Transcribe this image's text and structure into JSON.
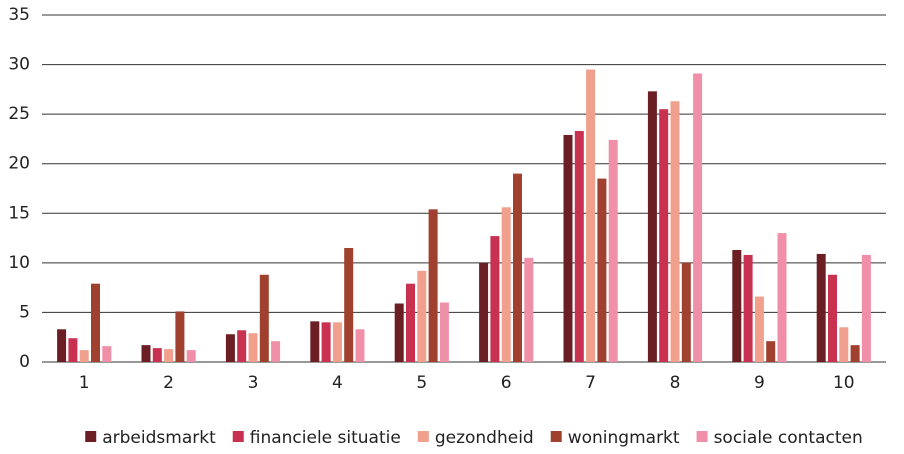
{
  "chart_data": {
    "type": "bar",
    "categories": [
      "1",
      "2",
      "3",
      "4",
      "5",
      "6",
      "7",
      "8",
      "9",
      "10"
    ],
    "series": [
      {
        "name": "arbeidsmarkt",
        "color": "#6b1e24",
        "values": [
          3.3,
          1.7,
          2.8,
          4.1,
          5.9,
          10.0,
          22.9,
          27.3,
          11.3,
          10.9
        ]
      },
      {
        "name": "financiele situatie",
        "color": "#c8314f",
        "values": [
          2.4,
          1.4,
          3.2,
          4.0,
          7.9,
          12.7,
          23.3,
          25.5,
          10.8,
          8.8
        ]
      },
      {
        "name": "gezondheid",
        "color": "#f0a08c",
        "values": [
          1.2,
          1.3,
          2.9,
          4.0,
          9.2,
          15.6,
          29.5,
          26.3,
          6.6,
          3.5
        ]
      },
      {
        "name": "woningmarkt",
        "color": "#a0402e",
        "values": [
          7.9,
          5.1,
          8.8,
          11.5,
          15.4,
          19.0,
          18.5,
          10.0,
          2.1,
          1.7
        ]
      },
      {
        "name": "sociale contacten",
        "color": "#f08fa8",
        "values": [
          1.6,
          1.2,
          2.1,
          3.3,
          6.0,
          10.5,
          22.4,
          29.1,
          13.0,
          10.8
        ]
      }
    ],
    "ylim": [
      0,
      35
    ],
    "yticks": [
      0,
      5,
      10,
      15,
      20,
      25,
      30,
      35
    ],
    "grid": true,
    "legend": "bottom"
  }
}
